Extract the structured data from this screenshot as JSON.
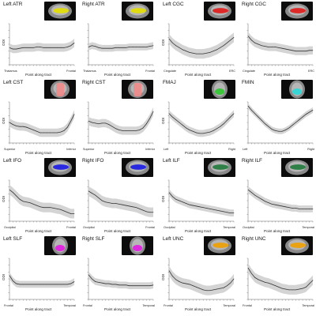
{
  "chart_data": [
    {
      "type": "line",
      "title": "Left ATR",
      "ylabel": "ODI",
      "xlabel": "Point along tract",
      "x_start_label": "Thalamus",
      "x_end_label": "Frontal",
      "x": [
        1,
        2,
        3,
        4,
        5,
        6,
        7,
        8,
        9,
        10,
        11,
        12,
        13,
        14,
        15,
        16,
        17,
        18,
        19,
        20
      ],
      "y": [
        0.45,
        0.43,
        0.43,
        0.44,
        0.45,
        0.45,
        0.45,
        0.45,
        0.46,
        0.46,
        0.45,
        0.45,
        0.45,
        0.45,
        0.45,
        0.45,
        0.45,
        0.46,
        0.48,
        0.52
      ],
      "band": 0.06,
      "ylim": [
        0.2,
        0.8
      ],
      "thumb_icon": "brain-sagittal-yellow-tract",
      "thumb_tract_color": "#e6e000",
      "thumb_view": "sagittal"
    },
    {
      "type": "line",
      "title": "Right ATR",
      "ylabel": "",
      "xlabel": "Point along tract",
      "x_start_label": "Thalamus",
      "x_end_label": "Frontal",
      "x": [
        1,
        2,
        3,
        4,
        5,
        6,
        7,
        8,
        9,
        10,
        11,
        12,
        13,
        14,
        15,
        16,
        17,
        18,
        19,
        20
      ],
      "y": [
        0.46,
        0.48,
        0.47,
        0.45,
        0.44,
        0.44,
        0.44,
        0.44,
        0.45,
        0.45,
        0.45,
        0.45,
        0.46,
        0.46,
        0.46,
        0.46,
        0.46,
        0.46,
        0.47,
        0.48
      ],
      "band": 0.05,
      "ylim": [
        0.2,
        0.8
      ],
      "thumb_icon": "brain-sagittal-yellow-tract",
      "thumb_tract_color": "#e6e000",
      "thumb_view": "sagittal"
    },
    {
      "type": "line",
      "title": "Left CGC",
      "ylabel": "ODI",
      "xlabel": "Point along tract",
      "x_start_label": "Cingulate",
      "x_end_label": "ERC",
      "x": [
        1,
        2,
        3,
        4,
        5,
        6,
        7,
        8,
        9,
        10,
        11,
        12,
        13,
        14,
        15,
        16,
        17,
        18,
        19,
        20
      ],
      "y": [
        0.58,
        0.52,
        0.48,
        0.45,
        0.42,
        0.4,
        0.38,
        0.37,
        0.36,
        0.36,
        0.36,
        0.37,
        0.38,
        0.4,
        0.42,
        0.45,
        0.48,
        0.52,
        0.56,
        0.6
      ],
      "band": 0.07,
      "ylim": [
        0.2,
        0.8
      ],
      "thumb_icon": "brain-sagittal-red-tract",
      "thumb_tract_color": "#e21a1a",
      "thumb_view": "sagittal"
    },
    {
      "type": "line",
      "title": "Right CGC",
      "ylabel": "",
      "xlabel": "Point along tract",
      "x_start_label": "Cingulate",
      "x_end_label": "ERC",
      "x": [
        1,
        2,
        3,
        4,
        5,
        6,
        7,
        8,
        9,
        10,
        11,
        12,
        13,
        14,
        15,
        16,
        17,
        18,
        19,
        20
      ],
      "y": [
        0.62,
        0.56,
        0.52,
        0.5,
        0.48,
        0.47,
        0.46,
        0.46,
        0.46,
        0.45,
        0.44,
        0.43,
        0.42,
        0.41,
        0.4,
        0.4,
        0.4,
        0.4,
        0.41,
        0.41
      ],
      "band": 0.06,
      "ylim": [
        0.2,
        0.8
      ],
      "thumb_icon": "brain-sagittal-red-tract",
      "thumb_tract_color": "#e21a1a",
      "thumb_view": "sagittal"
    },
    {
      "type": "line",
      "title": "Left CST",
      "ylabel": "ODI",
      "xlabel": "Point along tract",
      "x_start_label": "Superior",
      "x_end_label": "Inferior",
      "x": [
        1,
        2,
        3,
        4,
        5,
        6,
        7,
        8,
        9,
        10,
        11,
        12,
        13,
        14,
        15,
        16,
        17,
        18,
        19,
        20
      ],
      "y": [
        0.5,
        0.47,
        0.45,
        0.44,
        0.44,
        0.43,
        0.41,
        0.39,
        0.37,
        0.35,
        0.35,
        0.35,
        0.35,
        0.35,
        0.35,
        0.36,
        0.38,
        0.43,
        0.52,
        0.62
      ],
      "band": 0.06,
      "ylim": [
        0.2,
        0.8
      ],
      "thumb_icon": "brain-coronal-pink-tract",
      "thumb_tract_color": "#f08a8a",
      "thumb_view": "coronal"
    },
    {
      "type": "line",
      "title": "Right CST",
      "ylabel": "",
      "xlabel": "Point along tract",
      "x_start_label": "Superior",
      "x_end_label": "Inferior",
      "x": [
        1,
        2,
        3,
        4,
        5,
        6,
        7,
        8,
        9,
        10,
        11,
        12,
        13,
        14,
        15,
        16,
        17,
        18,
        19,
        20
      ],
      "y": [
        0.52,
        0.5,
        0.49,
        0.48,
        0.49,
        0.49,
        0.47,
        0.44,
        0.41,
        0.39,
        0.38,
        0.38,
        0.38,
        0.38,
        0.38,
        0.39,
        0.42,
        0.48,
        0.56,
        0.66
      ],
      "band": 0.06,
      "ylim": [
        0.2,
        0.8
      ],
      "thumb_icon": "brain-coronal-pink-tract",
      "thumb_tract_color": "#f08a8a",
      "thumb_view": "coronal"
    },
    {
      "type": "line",
      "title": "FMAJ",
      "ylabel": "ODI",
      "xlabel": "Point along tract",
      "x_start_label": "Left",
      "x_end_label": "Right",
      "x": [
        1,
        2,
        3,
        4,
        5,
        6,
        7,
        8,
        9,
        10,
        11,
        12,
        13,
        14,
        15,
        16,
        17,
        18,
        19,
        20
      ],
      "y": [
        0.63,
        0.58,
        0.54,
        0.5,
        0.46,
        0.42,
        0.39,
        0.37,
        0.35,
        0.34,
        0.34,
        0.35,
        0.36,
        0.38,
        0.41,
        0.44,
        0.48,
        0.53,
        0.58,
        0.63
      ],
      "band": 0.05,
      "ylim": [
        0.2,
        0.8
      ],
      "thumb_icon": "brain-axial-green-tract",
      "thumb_tract_color": "#2ec82e",
      "thumb_view": "axial"
    },
    {
      "type": "line",
      "title": "FMIN",
      "ylabel": "",
      "xlabel": "Point along tract",
      "x_start_label": "Left",
      "x_end_label": "Right",
      "x": [
        1,
        2,
        3,
        4,
        5,
        6,
        7,
        8,
        9,
        10,
        11,
        12,
        13,
        14,
        15,
        16,
        17,
        18,
        19,
        20
      ],
      "y": [
        0.74,
        0.68,
        0.63,
        0.58,
        0.53,
        0.48,
        0.44,
        0.4,
        0.38,
        0.37,
        0.37,
        0.39,
        0.42,
        0.46,
        0.5,
        0.54,
        0.58,
        0.62,
        0.65,
        0.68
      ],
      "band": 0.04,
      "ylim": [
        0.2,
        0.8
      ],
      "thumb_icon": "brain-axial-cyan-tract",
      "thumb_tract_color": "#2bd7d7",
      "thumb_view": "axial"
    },
    {
      "type": "line",
      "title": "Left IFO",
      "ylabel": "ODI",
      "xlabel": "Point along tract",
      "x_start_label": "Occipital",
      "x_end_label": "Frontal",
      "x": [
        1,
        2,
        3,
        4,
        5,
        6,
        7,
        8,
        9,
        10,
        11,
        12,
        13,
        14,
        15,
        16,
        17,
        18,
        19,
        20
      ],
      "y": [
        0.66,
        0.62,
        0.57,
        0.52,
        0.49,
        0.48,
        0.47,
        0.45,
        0.43,
        0.41,
        0.4,
        0.4,
        0.4,
        0.39,
        0.38,
        0.37,
        0.35,
        0.33,
        0.31,
        0.31
      ],
      "band": 0.07,
      "ylim": [
        0.2,
        0.8
      ],
      "thumb_icon": "brain-sagittal-blue-tract",
      "thumb_tract_color": "#1a1ae6",
      "thumb_view": "sagittal"
    },
    {
      "type": "line",
      "title": "Right IFO",
      "ylabel": "",
      "xlabel": "Point along tract",
      "x_start_label": "Occipital",
      "x_end_label": "Frontal",
      "x": [
        1,
        2,
        3,
        4,
        5,
        6,
        7,
        8,
        9,
        10,
        11,
        12,
        13,
        14,
        15,
        16,
        17,
        18,
        19,
        20
      ],
      "y": [
        0.64,
        0.61,
        0.58,
        0.54,
        0.5,
        0.48,
        0.47,
        0.46,
        0.46,
        0.45,
        0.44,
        0.43,
        0.42,
        0.41,
        0.4,
        0.38,
        0.36,
        0.34,
        0.33,
        0.33
      ],
      "band": 0.07,
      "ylim": [
        0.2,
        0.8
      ],
      "thumb_icon": "brain-sagittal-blue-tract",
      "thumb_tract_color": "#1a1ae6",
      "thumb_view": "sagittal"
    },
    {
      "type": "line",
      "title": "Left ILF",
      "ylabel": "ODI",
      "xlabel": "Point along tract",
      "x_start_label": "Occipital",
      "x_end_label": "Temporal",
      "x": [
        1,
        2,
        3,
        4,
        5,
        6,
        7,
        8,
        9,
        10,
        11,
        12,
        13,
        14,
        15,
        16,
        17,
        18,
        19,
        20
      ],
      "y": [
        0.62,
        0.56,
        0.52,
        0.5,
        0.48,
        0.46,
        0.44,
        0.43,
        0.42,
        0.41,
        0.4,
        0.39,
        0.38,
        0.37,
        0.36,
        0.35,
        0.34,
        0.33,
        0.32,
        0.32
      ],
      "band": 0.05,
      "ylim": [
        0.2,
        0.8
      ],
      "thumb_icon": "brain-sagittal-green-tract",
      "thumb_tract_color": "#1f7a3a",
      "thumb_view": "sagittal"
    },
    {
      "type": "line",
      "title": "Right ILF",
      "ylabel": "",
      "xlabel": "Point along tract",
      "x_start_label": "Occipital",
      "x_end_label": "Temporal",
      "x": [
        1,
        2,
        3,
        4,
        5,
        6,
        7,
        8,
        9,
        10,
        11,
        12,
        13,
        14,
        15,
        16,
        17,
        18,
        19,
        20
      ],
      "y": [
        0.66,
        0.62,
        0.58,
        0.55,
        0.52,
        0.49,
        0.47,
        0.45,
        0.44,
        0.43,
        0.42,
        0.41,
        0.4,
        0.39,
        0.39,
        0.38,
        0.38,
        0.38,
        0.38,
        0.38
      ],
      "band": 0.05,
      "ylim": [
        0.2,
        0.8
      ],
      "thumb_icon": "brain-sagittal-green-tract",
      "thumb_tract_color": "#1f7a3a",
      "thumb_view": "sagittal"
    },
    {
      "type": "line",
      "title": "Left SLF",
      "ylabel": "ODI",
      "xlabel": "Point along tract",
      "x_start_label": "Frontal",
      "x_end_label": "Temporal",
      "x": [
        1,
        2,
        3,
        4,
        5,
        6,
        7,
        8,
        9,
        10,
        11,
        12,
        13,
        14,
        15,
        16,
        17,
        18,
        19,
        20
      ],
      "y": [
        0.55,
        0.47,
        0.43,
        0.42,
        0.42,
        0.42,
        0.42,
        0.42,
        0.42,
        0.42,
        0.42,
        0.42,
        0.42,
        0.42,
        0.42,
        0.42,
        0.42,
        0.42,
        0.43,
        0.46
      ],
      "band": 0.05,
      "ylim": [
        0.2,
        0.8
      ],
      "thumb_icon": "brain-axial-magenta-tract",
      "thumb_tract_color": "#e21ae2",
      "thumb_view": "axial"
    },
    {
      "type": "line",
      "title": "Right SLF",
      "ylabel": "",
      "xlabel": "Point along tract",
      "x_start_label": "Frontal",
      "x_end_label": "Temporal",
      "x": [
        1,
        2,
        3,
        4,
        5,
        6,
        7,
        8,
        9,
        10,
        11,
        12,
        13,
        14,
        15,
        16,
        17,
        18,
        19,
        20
      ],
      "y": [
        0.56,
        0.5,
        0.46,
        0.45,
        0.44,
        0.43,
        0.43,
        0.42,
        0.42,
        0.41,
        0.41,
        0.41,
        0.4,
        0.4,
        0.4,
        0.4,
        0.4,
        0.4,
        0.4,
        0.41
      ],
      "band": 0.05,
      "ylim": [
        0.2,
        0.8
      ],
      "thumb_icon": "brain-axial-magenta-tract",
      "thumb_tract_color": "#e21ae2",
      "thumb_view": "axial"
    },
    {
      "type": "line",
      "title": "Left UNC",
      "ylabel": "ODI",
      "xlabel": "Point along tract",
      "x_start_label": "Frontal",
      "x_end_label": "Temporal",
      "x": [
        1,
        2,
        3,
        4,
        5,
        6,
        7,
        8,
        9,
        10,
        11,
        12,
        13,
        14,
        15,
        16,
        17,
        18,
        19,
        20
      ],
      "y": [
        0.62,
        0.54,
        0.49,
        0.46,
        0.44,
        0.43,
        0.42,
        0.4,
        0.38,
        0.36,
        0.34,
        0.33,
        0.33,
        0.34,
        0.35,
        0.36,
        0.37,
        0.4,
        0.44,
        0.5
      ],
      "band": 0.07,
      "ylim": [
        0.2,
        0.8
      ],
      "thumb_icon": "brain-sagittal-orange-tract",
      "thumb_tract_color": "#f0a000",
      "thumb_view": "sagittal"
    },
    {
      "type": "line",
      "title": "Right UNC",
      "ylabel": "",
      "xlabel": "Point along tract",
      "x_start_label": "Frontal",
      "x_end_label": "Temporal",
      "x": [
        1,
        2,
        3,
        4,
        5,
        6,
        7,
        8,
        9,
        10,
        11,
        12,
        13,
        14,
        15,
        16,
        17,
        18,
        19,
        20
      ],
      "y": [
        0.66,
        0.58,
        0.52,
        0.49,
        0.47,
        0.45,
        0.44,
        0.42,
        0.4,
        0.38,
        0.36,
        0.35,
        0.34,
        0.34,
        0.34,
        0.35,
        0.36,
        0.38,
        0.43,
        0.48
      ],
      "band": 0.07,
      "ylim": [
        0.2,
        0.8
      ],
      "thumb_icon": "brain-sagittal-orange-tract",
      "thumb_tract_color": "#f0a000",
      "thumb_view": "sagittal"
    }
  ]
}
